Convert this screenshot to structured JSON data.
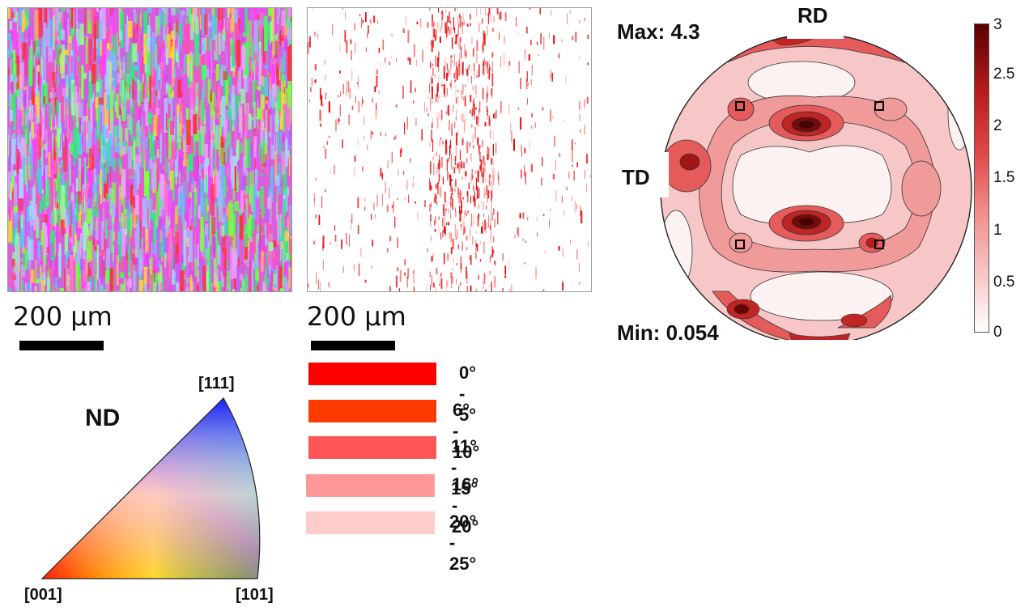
{
  "ipf_map": {
    "scale_label": "200 µm"
  },
  "kam_map": {
    "scale_label": "200 µm"
  },
  "ipf_legend": {
    "direction": "ND",
    "corner_111": "[111]",
    "corner_001": "[001]",
    "corner_101": "[101]"
  },
  "misorientation_legend": {
    "items": [
      {
        "label": "0° - 5°",
        "color": "#ff0000"
      },
      {
        "label": "6° - 10°",
        "color": "#ff3a00"
      },
      {
        "label": "11° - 15°",
        "color": "#ff5555"
      },
      {
        "label": "16° - 20°",
        "color": "#ff9999"
      },
      {
        "label": "20° - 25°",
        "color": "#ffcccc"
      }
    ]
  },
  "pole_figure": {
    "max_label": "Max: 4.3",
    "min_label": "Min: 0.054",
    "rd_label": "RD",
    "td_label": "TD",
    "colorbar_ticks": [
      "3",
      "2.5",
      "2",
      "1.5",
      "1",
      "0.5",
      "0"
    ],
    "colorbar_colors": [
      "#ffffff",
      "#f8c8c8",
      "#f08a8a",
      "#e04848",
      "#b81c1c",
      "#5a0000"
    ]
  }
}
